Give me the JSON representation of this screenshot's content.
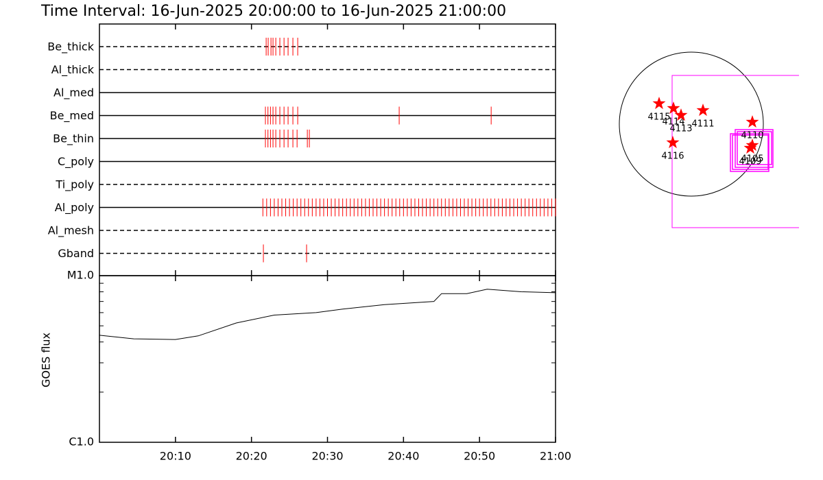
{
  "chart_data": [
    {
      "type": "timeline",
      "title": "Time Interval: 16-Jun-2025 20:00:00 to 16-Jun-2025 21:00:00",
      "xlim": [
        "20:00",
        "21:00"
      ],
      "xticks": [
        "20:10",
        "20:20",
        "20:30",
        "20:40",
        "20:50",
        "21:00"
      ],
      "color": "#ff0000",
      "rows": [
        {
          "name": "Be_thick",
          "dashed": true,
          "times": [
            "20:21:56",
            "20:22:12",
            "20:22:34",
            "20:22:50",
            "20:23:12",
            "20:23:44",
            "20:24:17",
            "20:24:49",
            "20:25:27",
            "20:26:05"
          ]
        },
        {
          "name": "Al_thick",
          "dashed": true,
          "times": []
        },
        {
          "name": "Al_med",
          "dashed": false,
          "times": []
        },
        {
          "name": "Be_med",
          "dashed": false,
          "times": [
            "20:21:50",
            "20:22:10",
            "20:22:30",
            "20:22:50",
            "20:23:12",
            "20:23:44",
            "20:24:17",
            "20:24:49",
            "20:25:27",
            "20:26:05",
            "20:39:26",
            "20:51:32"
          ]
        },
        {
          "name": "Be_thin",
          "dashed": false,
          "times": [
            "20:21:50",
            "20:22:10",
            "20:22:30",
            "20:22:50",
            "20:23:12",
            "20:23:44",
            "20:24:17",
            "20:24:49",
            "20:25:27",
            "20:26:00",
            "20:27:21",
            "20:27:37"
          ]
        },
        {
          "name": "C_poly",
          "dashed": false,
          "times": []
        },
        {
          "name": "Ti_poly",
          "dashed": true,
          "times": []
        },
        {
          "name": "Al_poly",
          "dashed": false,
          "times": [
            "20:21:30",
            "20:22:00",
            "20:22:30",
            "20:23:00",
            "20:23:30",
            "20:24:00",
            "20:24:30",
            "20:25:00",
            "20:25:30",
            "20:26:00",
            "20:26:30",
            "20:27:00",
            "20:27:30",
            "20:28:00",
            "20:28:30",
            "20:29:00",
            "20:29:30",
            "20:30:00",
            "20:30:30",
            "20:31:00",
            "20:31:30",
            "20:32:00",
            "20:32:30",
            "20:33:00",
            "20:33:30",
            "20:34:00",
            "20:34:30",
            "20:35:00",
            "20:35:30",
            "20:36:00",
            "20:36:30",
            "20:37:00",
            "20:37:30",
            "20:38:00",
            "20:38:30",
            "20:39:00",
            "20:39:30",
            "20:40:00",
            "20:40:30",
            "20:41:00",
            "20:41:30",
            "20:42:00",
            "20:42:30",
            "20:43:00",
            "20:43:30",
            "20:44:00",
            "20:44:30",
            "20:45:00",
            "20:45:30",
            "20:46:00",
            "20:46:30",
            "20:47:00",
            "20:47:30",
            "20:48:00",
            "20:48:30",
            "20:49:00",
            "20:49:30",
            "20:50:00",
            "20:50:30",
            "20:51:00",
            "20:51:30",
            "20:52:00",
            "20:52:30",
            "20:53:00",
            "20:53:30",
            "20:54:00",
            "20:54:30",
            "20:55:00",
            "20:55:30",
            "20:56:00",
            "20:56:30",
            "20:57:00",
            "20:57:30",
            "20:58:00",
            "20:58:30",
            "20:59:00",
            "20:59:30",
            "21:00:00"
          ]
        },
        {
          "name": "Al_mesh",
          "dashed": true,
          "times": []
        },
        {
          "name": "Gband",
          "dashed": true,
          "times": [
            "20:21:34",
            "20:27:15"
          ]
        }
      ]
    },
    {
      "type": "line",
      "ylabel": "GOES flux",
      "log": true,
      "color": "#000000",
      "xlim": [
        "20:00",
        "21:00"
      ],
      "xticks": [
        "20:10",
        "20:20",
        "20:30",
        "20:40",
        "20:50",
        "21:00"
      ],
      "ylim": [
        1e-06,
        1e-05
      ],
      "yticks": [
        {
          "value": 1e-06,
          "label": "C1.0"
        },
        {
          "value": 1e-05,
          "label": "M1.0"
        }
      ],
      "yminorticks": [
        2e-06,
        3e-06,
        4e-06,
        5e-06,
        6e-06,
        7e-06,
        8e-06,
        9e-06
      ],
      "x": [
        "20:00",
        "20:04:30",
        "20:10",
        "20:13",
        "20:18",
        "20:23",
        "20:28:30",
        "20:32",
        "20:37:30",
        "20:44",
        "20:45",
        "20:48:20",
        "20:51",
        "20:55:30",
        "21:00"
      ],
      "values": [
        4.39e-06,
        4.18e-06,
        4.14e-06,
        4.35e-06,
        5.2e-06,
        5.8e-06,
        6e-06,
        6.3e-06,
        6.7e-06,
        7e-06,
        7.8e-06,
        7.8e-06,
        8.3e-06,
        8e-06,
        7.9e-06
      ]
    }
  ],
  "map": {
    "star_color": "#ff0000",
    "box_color": "#ff00ff",
    "regions": [
      "4115",
      "4114",
      "4113",
      "4111",
      "4110",
      "4116",
      "4105",
      "4109"
    ]
  }
}
